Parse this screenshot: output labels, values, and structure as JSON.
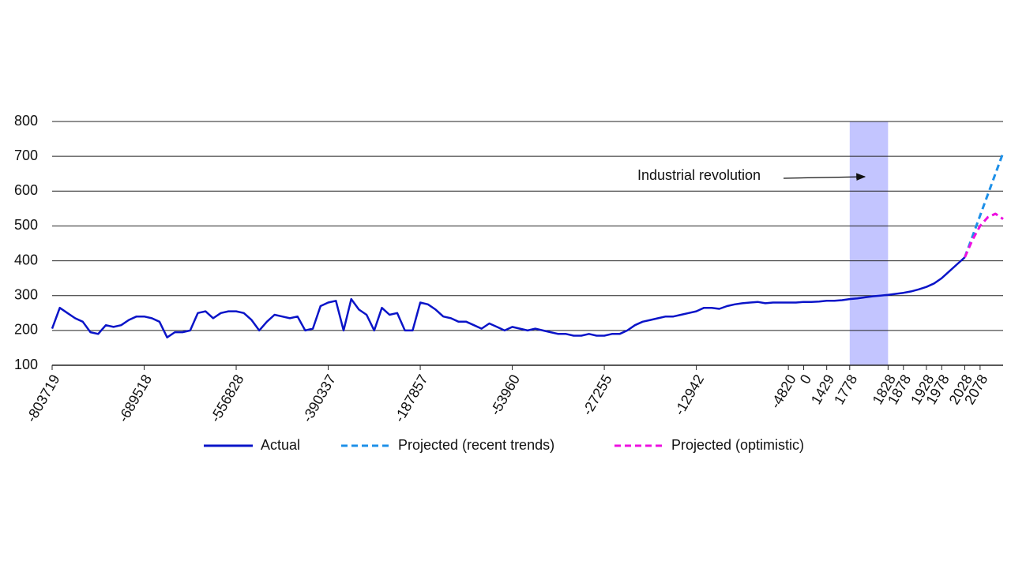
{
  "chart_data": {
    "type": "line",
    "annotation": "Industrial revolution",
    "categories": [
      "-803719",
      null,
      null,
      null,
      null,
      null,
      null,
      null,
      null,
      null,
      null,
      null,
      "-689518",
      null,
      null,
      null,
      null,
      null,
      null,
      null,
      null,
      null,
      null,
      null,
      "-556828",
      null,
      null,
      null,
      null,
      null,
      null,
      null,
      null,
      null,
      null,
      null,
      "-390337",
      null,
      null,
      null,
      null,
      null,
      null,
      null,
      null,
      null,
      null,
      null,
      "-187857",
      null,
      null,
      null,
      null,
      null,
      null,
      null,
      null,
      null,
      null,
      null,
      "-53960",
      null,
      null,
      null,
      null,
      null,
      null,
      null,
      null,
      null,
      null,
      null,
      "-27255",
      null,
      null,
      null,
      null,
      null,
      null,
      null,
      null,
      null,
      null,
      null,
      "-12942",
      null,
      null,
      null,
      null,
      null,
      null,
      null,
      null,
      null,
      null,
      null,
      "-4820",
      null,
      "0",
      null,
      null,
      "1429",
      null,
      null,
      "1778",
      null,
      null,
      null,
      null,
      "1828",
      null,
      "1878",
      null,
      null,
      "1928",
      null,
      "1978",
      null,
      null,
      "2028",
      null,
      "2078",
      null,
      null,
      null
    ],
    "series": [
      {
        "name": "Actual",
        "color": "#0a14c8",
        "dash": false,
        "values": [
          205,
          265,
          250,
          235,
          225,
          195,
          190,
          215,
          210,
          215,
          230,
          240,
          240,
          235,
          225,
          180,
          195,
          195,
          200,
          250,
          255,
          235,
          250,
          255,
          255,
          250,
          230,
          200,
          225,
          245,
          240,
          235,
          240,
          200,
          205,
          270,
          280,
          285,
          200,
          290,
          260,
          245,
          200,
          265,
          245,
          250,
          200,
          200,
          280,
          275,
          260,
          240,
          235,
          225,
          225,
          215,
          205,
          220,
          210,
          200,
          210,
          205,
          200,
          205,
          200,
          195,
          190,
          190,
          185,
          185,
          190,
          185,
          185,
          190,
          190,
          200,
          215,
          225,
          230,
          235,
          240,
          240,
          245,
          250,
          255,
          265,
          265,
          262,
          270,
          275,
          278,
          280,
          282,
          278,
          280,
          280,
          280,
          280,
          282,
          282,
          283,
          285,
          285,
          287,
          290,
          292,
          295,
          298,
          300,
          302,
          305,
          308,
          312,
          318,
          325,
          335,
          350,
          370,
          390,
          410,
          null,
          null,
          null,
          null,
          null
        ]
      },
      {
        "name": "Projected (recent trends)",
        "color": "#1e90e8",
        "dash": true,
        "values": [
          null,
          null,
          null,
          null,
          null,
          null,
          null,
          null,
          null,
          null,
          null,
          null,
          null,
          null,
          null,
          null,
          null,
          null,
          null,
          null,
          null,
          null,
          null,
          null,
          null,
          null,
          null,
          null,
          null,
          null,
          null,
          null,
          null,
          null,
          null,
          null,
          null,
          null,
          null,
          null,
          null,
          null,
          null,
          null,
          null,
          null,
          null,
          null,
          null,
          null,
          null,
          null,
          null,
          null,
          null,
          null,
          null,
          null,
          null,
          null,
          null,
          null,
          null,
          null,
          null,
          null,
          null,
          null,
          null,
          null,
          null,
          null,
          null,
          null,
          null,
          null,
          null,
          null,
          null,
          null,
          null,
          null,
          null,
          null,
          null,
          null,
          null,
          null,
          null,
          null,
          null,
          null,
          null,
          null,
          null,
          null,
          null,
          null,
          null,
          null,
          null,
          null,
          null,
          null,
          null,
          null,
          null,
          null,
          null,
          null,
          null,
          null,
          null,
          null,
          null,
          null,
          null,
          null,
          null,
          410,
          470,
          530,
          590,
          650,
          710
        ]
      },
      {
        "name": "Projected (optimistic)",
        "color": "#ee10e0",
        "dash": true,
        "values": [
          null,
          null,
          null,
          null,
          null,
          null,
          null,
          null,
          null,
          null,
          null,
          null,
          null,
          null,
          null,
          null,
          null,
          null,
          null,
          null,
          null,
          null,
          null,
          null,
          null,
          null,
          null,
          null,
          null,
          null,
          null,
          null,
          null,
          null,
          null,
          null,
          null,
          null,
          null,
          null,
          null,
          null,
          null,
          null,
          null,
          null,
          null,
          null,
          null,
          null,
          null,
          null,
          null,
          null,
          null,
          null,
          null,
          null,
          null,
          null,
          null,
          null,
          null,
          null,
          null,
          null,
          null,
          null,
          null,
          null,
          null,
          null,
          null,
          null,
          null,
          null,
          null,
          null,
          null,
          null,
          null,
          null,
          null,
          null,
          null,
          null,
          null,
          null,
          null,
          null,
          null,
          null,
          null,
          null,
          null,
          null,
          null,
          null,
          null,
          null,
          null,
          null,
          null,
          null,
          null,
          null,
          null,
          null,
          null,
          null,
          null,
          null,
          null,
          null,
          null,
          null,
          null,
          null,
          null,
          410,
          460,
          500,
          525,
          535,
          520
        ]
      }
    ],
    "ylim": [
      100,
      800
    ],
    "yticks": [
      100,
      200,
      300,
      400,
      500,
      600,
      700,
      800
    ],
    "grid": true
  }
}
